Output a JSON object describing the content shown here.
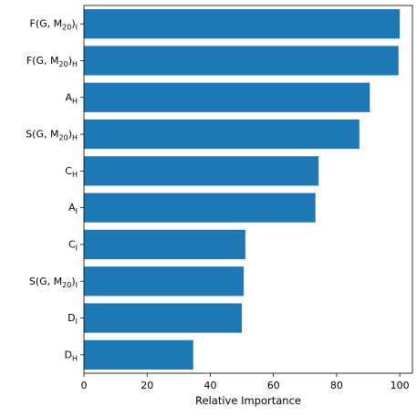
{
  "chart_data": {
    "type": "bar",
    "orientation": "horizontal",
    "title": "",
    "xlabel": "Relative Importance",
    "ylabel": "",
    "xlim": [
      0,
      104
    ],
    "xticks": [
      0,
      20,
      40,
      60,
      80,
      100
    ],
    "grid": false,
    "bar_color": "#1f77b4",
    "categories": [
      {
        "main": "F(G, M",
        "sub": "20",
        "tail": ")",
        "sub2": "I"
      },
      {
        "main": "F(G, M",
        "sub": "20",
        "tail": ")",
        "sub2": "H"
      },
      {
        "main": "A",
        "sub": "H",
        "tail": "",
        "sub2": ""
      },
      {
        "main": "S(G, M",
        "sub": "20",
        "tail": ")",
        "sub2": "H"
      },
      {
        "main": "C",
        "sub": "H",
        "tail": "",
        "sub2": ""
      },
      {
        "main": "A",
        "sub": "I",
        "tail": "",
        "sub2": ""
      },
      {
        "main": "C",
        "sub": "I",
        "tail": "",
        "sub2": ""
      },
      {
        "main": "S(G, M",
        "sub": "20",
        "tail": ")",
        "sub2": "I"
      },
      {
        "main": "D",
        "sub": "I",
        "tail": "",
        "sub2": ""
      },
      {
        "main": "D",
        "sub": "H",
        "tail": "",
        "sub2": ""
      }
    ],
    "values": [
      100,
      99.6,
      90.5,
      87.2,
      74.3,
      73.3,
      51.1,
      50.6,
      50.0,
      34.6
    ]
  }
}
